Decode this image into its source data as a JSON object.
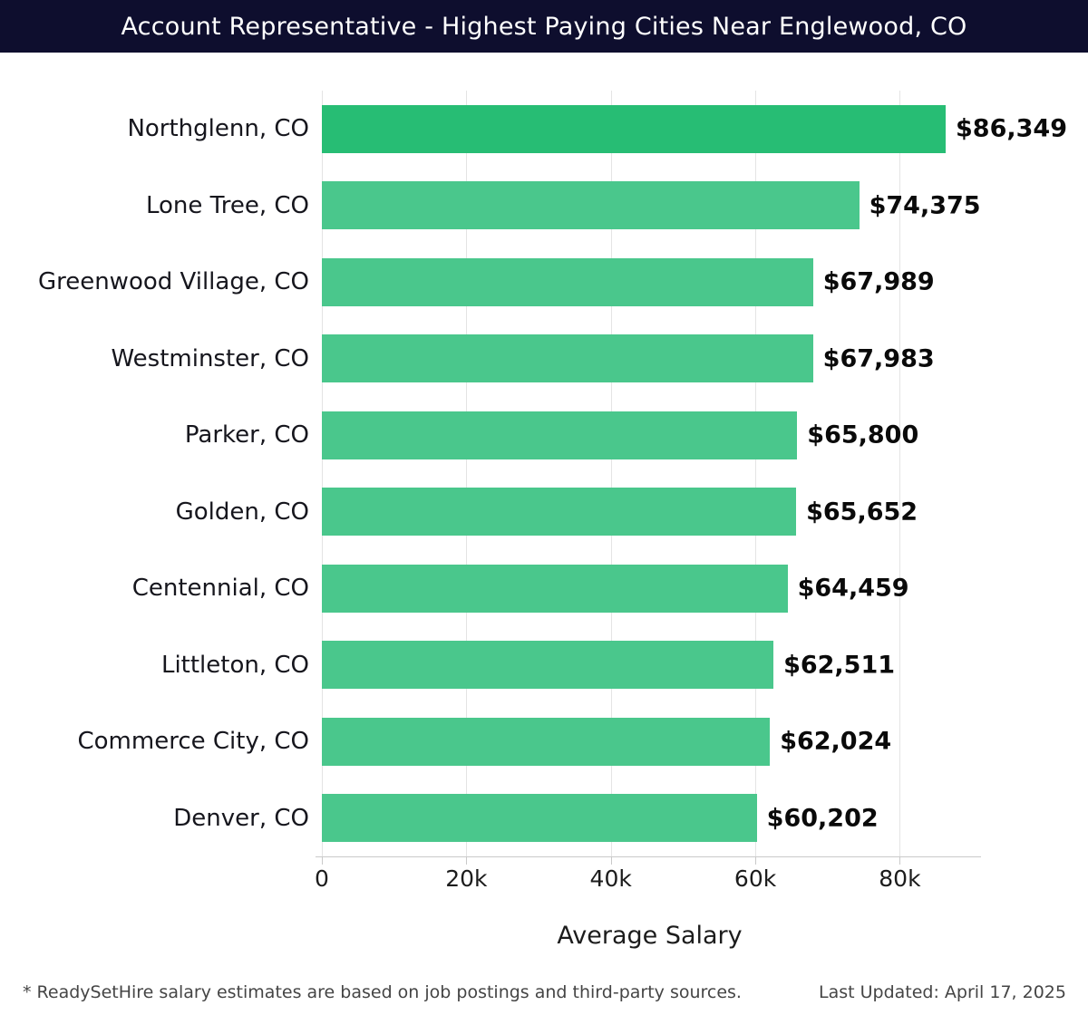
{
  "header": {
    "title": "Account Representative - Highest Paying Cities Near Englewood, CO"
  },
  "chart_data": {
    "type": "bar",
    "orientation": "horizontal",
    "title": "Account Representative - Highest Paying Cities Near Englewood, CO",
    "xlabel": "Average Salary",
    "categories": [
      "Northglenn, CO",
      "Lone Tree, CO",
      "Greenwood Village, CO",
      "Westminster, CO",
      "Parker, CO",
      "Golden, CO",
      "Centennial, CO",
      "Littleton, CO",
      "Commerce City, CO",
      "Denver, CO"
    ],
    "values": [
      86349,
      74375,
      67989,
      67983,
      65800,
      65652,
      64459,
      62511,
      62024,
      60202
    ],
    "value_labels": [
      "$86,349",
      "$74,375",
      "$67,989",
      "$67,983",
      "$65,800",
      "$65,652",
      "$64,459",
      "$62,511",
      "$62,024",
      "$60,202"
    ],
    "xlim": [
      0,
      90740
    ],
    "xticks": [
      {
        "value": 0,
        "label": "0"
      },
      {
        "value": 20000,
        "label": "20k"
      },
      {
        "value": 40000,
        "label": "40k"
      },
      {
        "value": 60000,
        "label": "60k"
      },
      {
        "value": 80000,
        "label": "80k"
      }
    ],
    "grid": "vertical",
    "legend": "none",
    "colors": {
      "header_bg": "#0e0e2e",
      "bar_first": "#27bd74",
      "bar_rest": "#4ac78c",
      "gridline": "#e4e4e4",
      "axis_line": "#c9c9c9"
    }
  },
  "footer": {
    "note": "* ReadySetHire salary estimates are based on job postings and third-party sources.",
    "last_updated": "Last Updated: April 17, 2025"
  }
}
